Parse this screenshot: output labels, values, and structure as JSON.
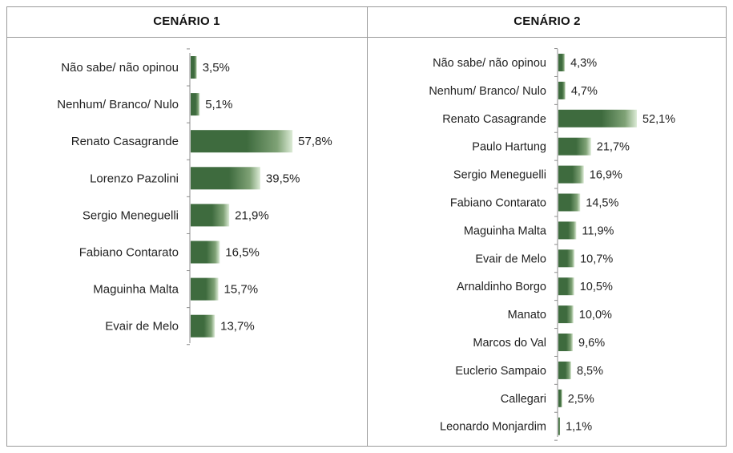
{
  "charts": [
    {
      "header": "CENÁRIO 1",
      "chart_data": {
        "type": "bar",
        "orientation": "horizontal",
        "categories": [
          "Não sabe/ não opinou",
          "Nenhum/ Branco/ Nulo",
          "Renato Casagrande",
          "Lorenzo Pazolini",
          "Sergio Meneguelli",
          "Fabiano Contarato",
          "Maguinha Malta",
          "Evair de Melo"
        ],
        "values": [
          3.5,
          5.1,
          57.8,
          39.5,
          21.9,
          16.5,
          15.7,
          13.7
        ],
        "value_labels": [
          "3,5%",
          "5,1%",
          "57,8%",
          "39,5%",
          "21,9%",
          "16,5%",
          "15,7%",
          "13,7%"
        ],
        "title": "",
        "xlabel": "",
        "ylabel": "",
        "grid": false
      }
    },
    {
      "header": "CENÁRIO 2",
      "chart_data": {
        "type": "bar",
        "orientation": "horizontal",
        "categories": [
          "Não sabe/ não opinou",
          "Nenhum/ Branco/ Nulo",
          "Renato Casagrande",
          "Paulo Hartung",
          "Sergio Meneguelli",
          "Fabiano Contarato",
          "Maguinha Malta",
          "Evair de Melo",
          "Arnaldinho Borgo",
          "Manato",
          "Marcos do Val",
          "Euclerio Sampaio",
          "Callegari",
          "Leonardo Monjardim"
        ],
        "values": [
          4.3,
          4.7,
          52.1,
          21.7,
          16.9,
          14.5,
          11.9,
          10.7,
          10.5,
          10.0,
          9.6,
          8.5,
          2.5,
          1.1
        ],
        "value_labels": [
          "4,3%",
          "4,7%",
          "52,1%",
          "21,7%",
          "16,9%",
          "14,5%",
          "11,9%",
          "10,7%",
          "10,5%",
          "10,0%",
          "9,6%",
          "8,5%",
          "2,5%",
          "1,1%"
        ],
        "title": "",
        "xlabel": "",
        "ylabel": "",
        "grid": false
      }
    }
  ],
  "colors": {
    "bar_dark": "#3e6b3e",
    "bar_light": "#dcebd6",
    "axis": "#8c8c8c",
    "border": "#9a9a9a"
  }
}
